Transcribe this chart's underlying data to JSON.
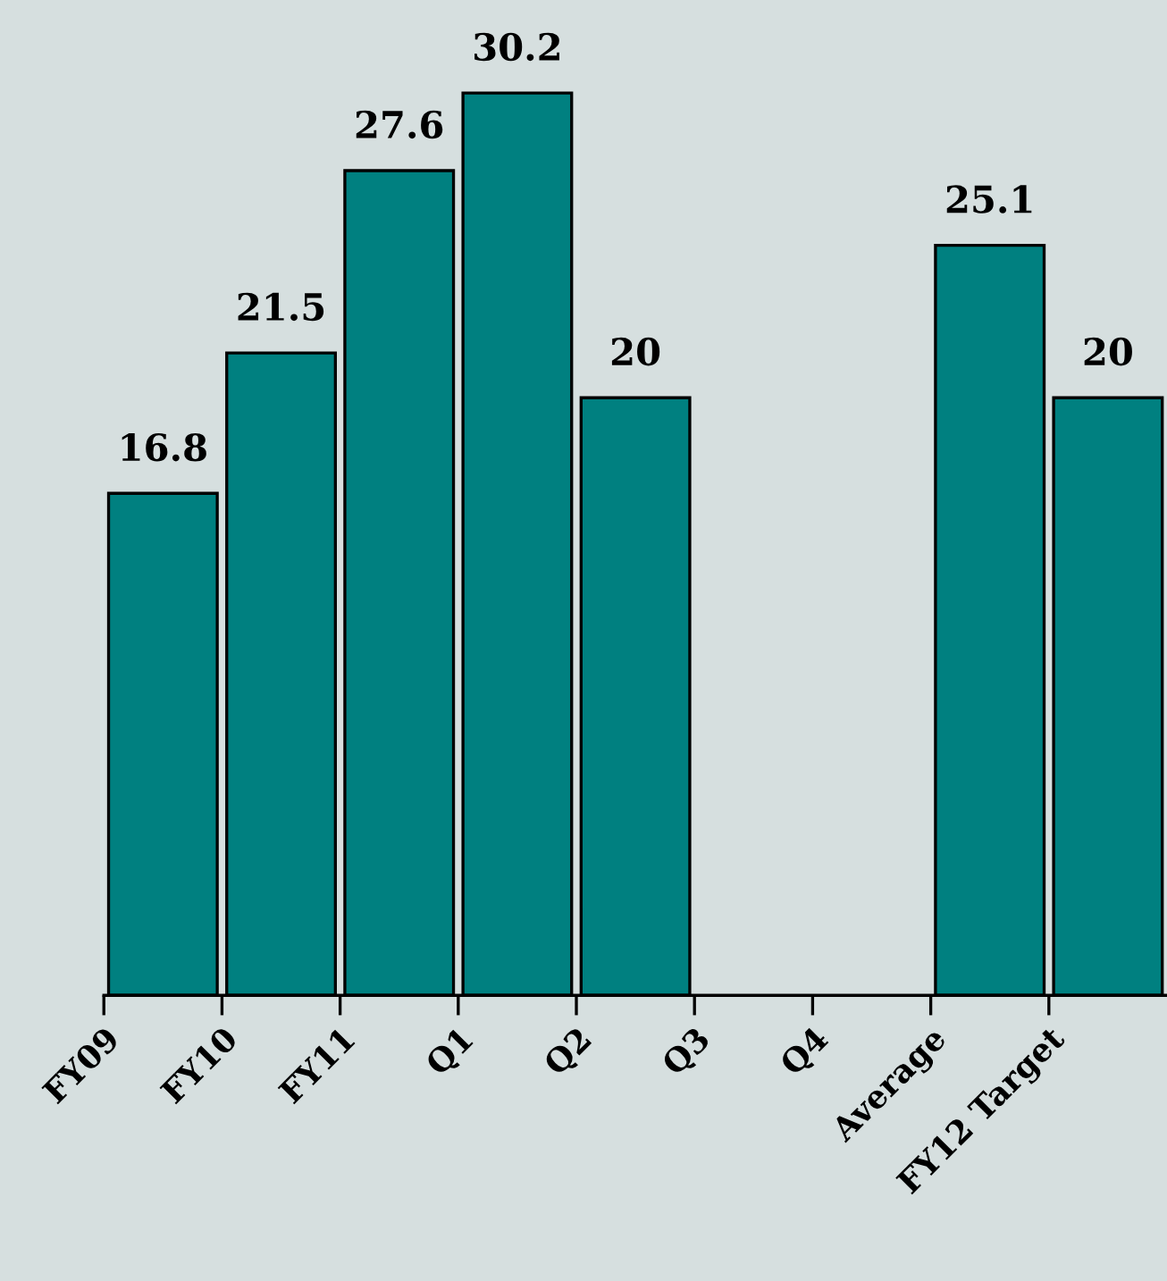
{
  "chart_data": {
    "type": "bar",
    "categories": [
      "FY09",
      "FY10",
      "FY11",
      "Q1",
      "Q2",
      "Q3",
      "Q4",
      "Average",
      "FY12 Target"
    ],
    "values": [
      16.8,
      21.5,
      27.6,
      30.2,
      20,
      null,
      null,
      25.1,
      20
    ],
    "color": "#008080",
    "data_labels": true,
    "grid": false,
    "legend": false,
    "tick_labels": "x"
  }
}
